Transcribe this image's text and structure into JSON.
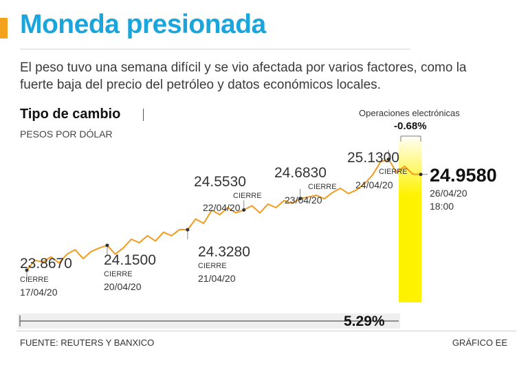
{
  "header": {
    "title": "Moneda presionada",
    "subtitle": "El peso tuvo una semana difícil y se vio afectada por varios factores, como la fuerte baja del precio del petróleo y datos económicos locales."
  },
  "chart_data": {
    "type": "line",
    "title": "Tipo de cambio",
    "ylabel": "PESOS POR DÓLAR",
    "ylim": [
      23.5,
      25.3
    ],
    "line_color": "#f39a1e",
    "highlight_color": "#fff200",
    "series": [
      {
        "name": "Tipo de cambio",
        "values": [
          23.867,
          23.98,
          23.96,
          24.02,
          23.95,
          24.05,
          24.1,
          24.0,
          24.08,
          24.12,
          24.15,
          24.05,
          24.12,
          24.22,
          24.18,
          24.26,
          24.2,
          24.3,
          24.26,
          24.33,
          24.328,
          24.45,
          24.4,
          24.55,
          24.5,
          24.58,
          24.52,
          24.553,
          24.6,
          24.52,
          24.62,
          24.58,
          24.66,
          24.63,
          24.683,
          24.7,
          24.72,
          24.68,
          24.75,
          24.8,
          24.74,
          24.78,
          24.85,
          24.95,
          25.1,
          25.13,
          24.98,
          25.05,
          24.96,
          24.958
        ]
      }
    ],
    "markers": [
      {
        "value": "23.8670",
        "label": "CIERRE",
        "date": "17/04/20"
      },
      {
        "value": "24.1500",
        "label": "CIERRE",
        "date": "20/04/20"
      },
      {
        "value": "24.3280",
        "label": "CIERRE",
        "date": "21/04/20"
      },
      {
        "value": "24.5530",
        "label": "CIERRE",
        "date": "22/04/20"
      },
      {
        "value": "24.6830",
        "label": "CIERRE",
        "date": "23/04/20"
      },
      {
        "value": "25.1300",
        "label": "CIERRE",
        "date": "24/04/20"
      }
    ],
    "last": {
      "value": "24.9580",
      "date": "26/04/20",
      "time": "18:00"
    },
    "electronic": {
      "label": "Operaciones electrónicas",
      "change": "-0.68%"
    },
    "total_change": "5.29%"
  },
  "footer": {
    "source": "FUENTE: REUTERS Y BANXICO",
    "credit": "GRÁFICO EE"
  }
}
